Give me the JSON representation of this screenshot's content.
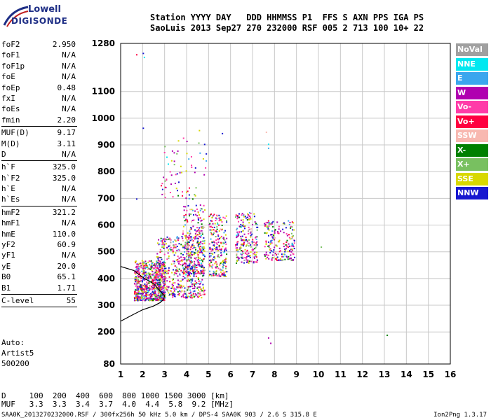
{
  "logo": {
    "line1": "Lowell",
    "line2": "DIGISONDE"
  },
  "header": {
    "line1": "Station YYYY DAY   DDD HHMMSS P1  FFS S AXN PPS IGA PS",
    "line2": "SaoLuis 2013 Sep27 270 232000 RSF 005 2 713 100 10+ 22"
  },
  "params": [
    {
      "k": "foF2",
      "v": "2.950"
    },
    {
      "k": "foF1",
      "v": "N/A"
    },
    {
      "k": "foF1p",
      "v": "N/A"
    },
    {
      "k": "foE",
      "v": "N/A"
    },
    {
      "k": "foEp",
      "v": "0.48"
    },
    {
      "k": "fxI",
      "v": "N/A"
    },
    {
      "k": "foEs",
      "v": "N/A"
    },
    {
      "k": "fmin",
      "v": "2.20",
      "sep": true
    },
    {
      "k": "MUF(D)",
      "v": "9.17"
    },
    {
      "k": "M(D)",
      "v": "3.11"
    },
    {
      "k": "D",
      "v": "N/A",
      "sep": true
    },
    {
      "k": "h`F",
      "v": "325.0"
    },
    {
      "k": "h`F2",
      "v": "325.0"
    },
    {
      "k": "h`E",
      "v": "N/A"
    },
    {
      "k": "h`Es",
      "v": "N/A",
      "sep": true
    },
    {
      "k": "hmF2",
      "v": "321.2"
    },
    {
      "k": "hmF1",
      "v": "N/A"
    },
    {
      "k": "hmE",
      "v": "110.0"
    },
    {
      "k": "yF2",
      "v": "60.9"
    },
    {
      "k": "yF1",
      "v": "N/A"
    },
    {
      "k": "yE",
      "v": "20.0"
    },
    {
      "k": "B0",
      "v": "65.1"
    },
    {
      "k": "B1",
      "v": "1.71",
      "sep": true
    },
    {
      "k": "C-level",
      "v": "55",
      "sep": true
    }
  ],
  "auto": {
    "line1": "Auto:",
    "line2": "Artist5",
    "line3": "500200"
  },
  "muf_table": {
    "line1": "D     100  200  400  600  800 1000 1500 3000 [km]",
    "line2": "MUF   3.3  3.3  3.4  3.7  4.0  4.4  5.8  9.2 [MHz]"
  },
  "footer": {
    "left": "SAA0K_2013270232000.RSF / 300fx256h 50 kHz 5.0 km / DPS-4 SAA0K 903 / 2.6 S 315.8 E",
    "right": "Ion2Png 1.3.17"
  },
  "legend": [
    {
      "label": "NoVal",
      "color": "#a0a0a0"
    },
    {
      "label": "NNE",
      "color": "#00e8f0"
    },
    {
      "label": "E",
      "color": "#3aa6ee"
    },
    {
      "label": "W",
      "color": "#b000b0"
    },
    {
      "label": "Vo-",
      "color": "#ff3ca8"
    },
    {
      "label": "Vo+",
      "color": "#ff0040"
    },
    {
      "label": "SSW",
      "color": "#f8b8b0"
    },
    {
      "label": "X-",
      "color": "#008000"
    },
    {
      "label": "X+",
      "color": "#78c060"
    },
    {
      "label": "SSE",
      "color": "#d8d800"
    },
    {
      "label": "NNW",
      "color": "#1818d0"
    }
  ],
  "chart_data": {
    "type": "scatter",
    "x_ticks": [
      1,
      2,
      3,
      4,
      5,
      6,
      7,
      8,
      9,
      10,
      11,
      12,
      13,
      14,
      15,
      16
    ],
    "y_ticks": [
      80,
      200,
      300,
      400,
      500,
      600,
      700,
      800,
      900,
      1000,
      1100,
      1280
    ],
    "xlim": [
      1,
      16
    ],
    "ylim": [
      80,
      1280
    ],
    "grid": true,
    "xlabel": "",
    "ylabel": "",
    "clusters": [
      {
        "x": [
          1.6,
          3.0
        ],
        "y": [
          320,
          470
        ],
        "n": 700
      },
      {
        "x": [
          2.6,
          4.8
        ],
        "y": [
          330,
          560
        ],
        "n": 520
      },
      {
        "x": [
          3.8,
          4.8
        ],
        "y": [
          420,
          680
        ],
        "n": 260
      },
      {
        "x": [
          5.0,
          5.8
        ],
        "y": [
          410,
          650
        ],
        "n": 240
      },
      {
        "x": [
          6.2,
          7.2
        ],
        "y": [
          460,
          650
        ],
        "n": 220
      },
      {
        "x": [
          7.5,
          8.9
        ],
        "y": [
          470,
          620
        ],
        "n": 200
      },
      {
        "x": [
          2.8,
          4.9
        ],
        "y": [
          700,
          960
        ],
        "n": 70
      }
    ],
    "isolated_points": [
      {
        "x": 1.7,
        "y": 1240,
        "series": "Vo+"
      },
      {
        "x": 2.0,
        "y": 1245,
        "series": "NNW"
      },
      {
        "x": 2.05,
        "y": 1230,
        "series": "NNE"
      },
      {
        "x": 2.0,
        "y": 965,
        "series": "NNW"
      },
      {
        "x": 5.6,
        "y": 945,
        "series": "NNW"
      },
      {
        "x": 7.7,
        "y": 905,
        "series": "NNE"
      },
      {
        "x": 7.7,
        "y": 890,
        "series": "E"
      },
      {
        "x": 7.6,
        "y": 950,
        "series": "SSW"
      },
      {
        "x": 10.1,
        "y": 520,
        "series": "X+"
      },
      {
        "x": 13.1,
        "y": 190,
        "series": "X-"
      },
      {
        "x": 7.7,
        "y": 180,
        "series": "W"
      },
      {
        "x": 7.8,
        "y": 160,
        "series": "W"
      },
      {
        "x": 1.7,
        "y": 700,
        "series": "NNW"
      }
    ],
    "trace": {
      "x": [
        1.0,
        1.5,
        2.0,
        2.5,
        2.8,
        2.95,
        3.0,
        2.5,
        2.0,
        1.6,
        1.0
      ],
      "y": [
        240,
        262,
        283,
        297,
        310,
        322,
        335,
        380,
        405,
        430,
        445
      ]
    }
  }
}
